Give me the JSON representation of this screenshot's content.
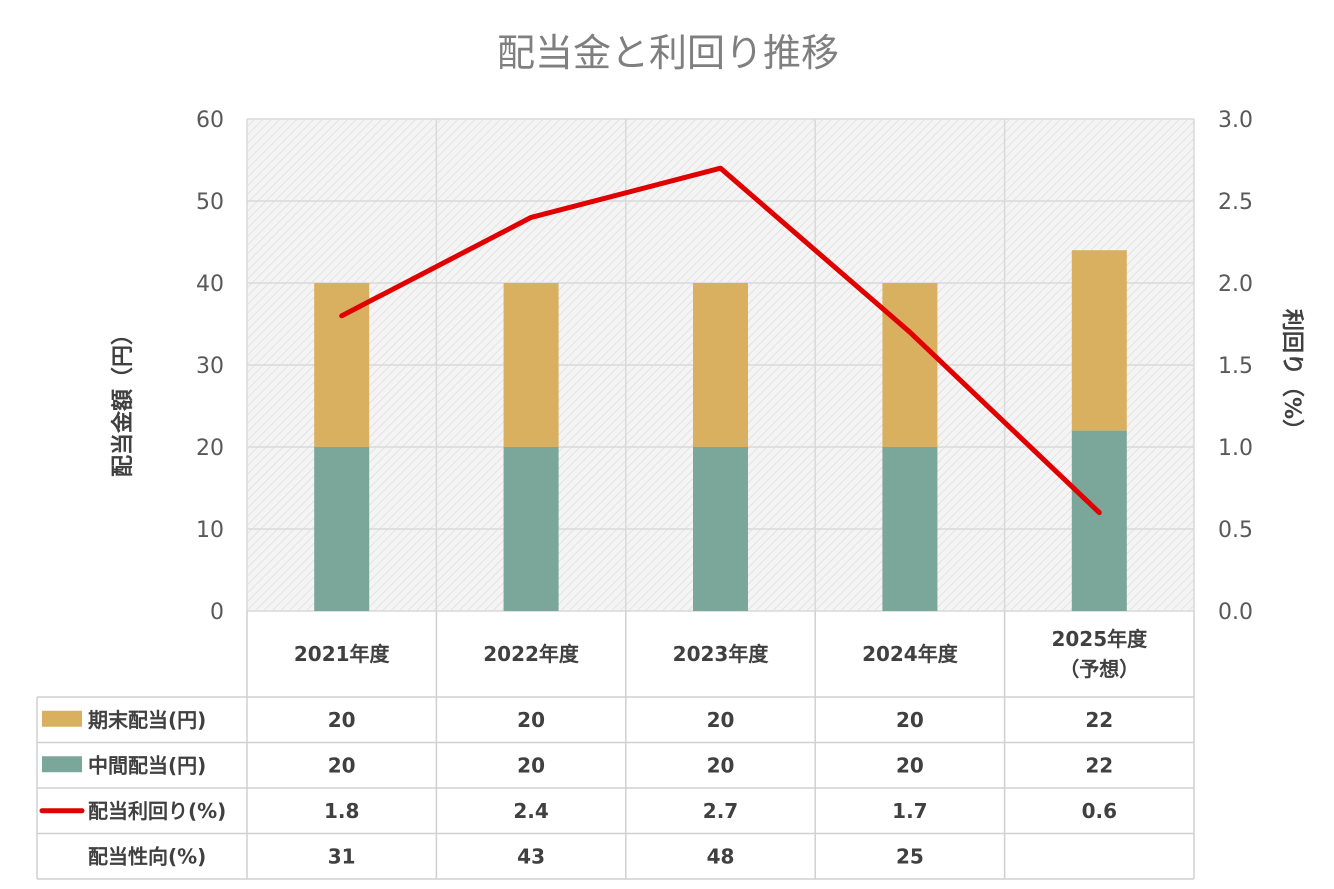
{
  "chart_data": {
    "type": "bar",
    "title": "配当金と利回り推移",
    "categories": [
      "2021年度",
      "2022年度",
      "2023年度",
      "2024年度",
      "2025年度\n（予想）"
    ],
    "series": [
      {
        "name": "中間配当(円)",
        "type": "bar",
        "stack": "dividend",
        "color": "#7ba69a",
        "values": [
          20,
          20,
          20,
          20,
          22
        ]
      },
      {
        "name": "期末配当(円)",
        "type": "bar",
        "stack": "dividend",
        "color": "#d8b060",
        "values": [
          20,
          20,
          20,
          20,
          22
        ]
      },
      {
        "name": "配当利回り(%)",
        "type": "line",
        "axis": "right",
        "color": "#e00000",
        "values": [
          1.8,
          2.4,
          2.7,
          1.7,
          0.6
        ]
      }
    ],
    "ylabel": "配当金額（円）",
    "y2label": "利回り（%）",
    "ylim": [
      0,
      60
    ],
    "y2lim": [
      0,
      3.0
    ],
    "yticks": [
      "0",
      "10",
      "20",
      "30",
      "40",
      "50",
      "60"
    ],
    "y2ticks": [
      "0.0",
      "0.5",
      "1.0",
      "1.5",
      "2.0",
      "2.5",
      "3.0"
    ],
    "grid": true,
    "legend": "data-table",
    "table": {
      "rows": [
        {
          "label": "期末配当(円)",
          "legend": "bar",
          "color": "#d8b060",
          "values": [
            "20",
            "20",
            "20",
            "20",
            "22"
          ]
        },
        {
          "label": "中間配当(円)",
          "legend": "bar",
          "color": "#7ba69a",
          "values": [
            "20",
            "20",
            "20",
            "20",
            "22"
          ]
        },
        {
          "label": "配当利回り(%)",
          "legend": "line",
          "color": "#e00000",
          "values": [
            "1.8",
            "2.4",
            "2.7",
            "1.7",
            "0.6"
          ]
        },
        {
          "label": "配当性向(%)",
          "legend": "none",
          "color": "",
          "values": [
            "31",
            "43",
            "48",
            "25",
            ""
          ]
        }
      ]
    }
  }
}
